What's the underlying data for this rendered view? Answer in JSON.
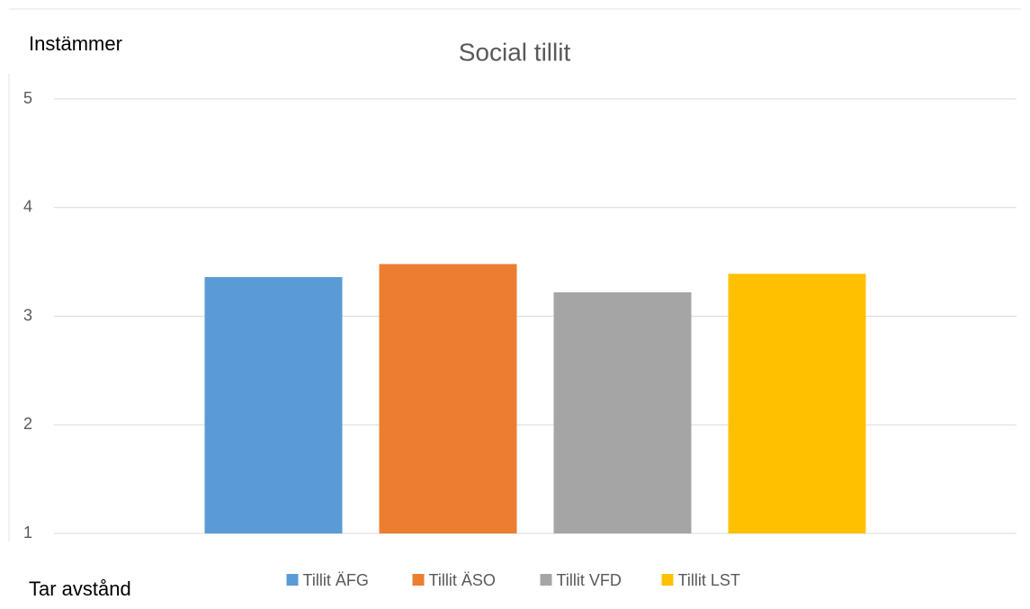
{
  "chart_data": {
    "type": "bar",
    "title": "Social tillit",
    "annotations": [
      "Instämmer",
      "Tar avstånd"
    ],
    "categories": [
      null
    ],
    "series": [
      {
        "name": "Tillit ÄFG",
        "color": "#5b9bd5",
        "values": [
          3.36
        ]
      },
      {
        "name": "Tillit ÄSO",
        "color": "#ed7d31",
        "values": [
          3.48
        ]
      },
      {
        "name": "Tillit VFD",
        "color": "#a5a5a5",
        "values": [
          3.22
        ]
      },
      {
        "name": "Tillit LST",
        "color": "#ffc000",
        "values": [
          3.39
        ]
      }
    ],
    "ylim": [
      1,
      5
    ],
    "yticks": [
      1,
      2,
      3,
      4,
      5
    ],
    "grid": true,
    "legend": "bottom"
  }
}
